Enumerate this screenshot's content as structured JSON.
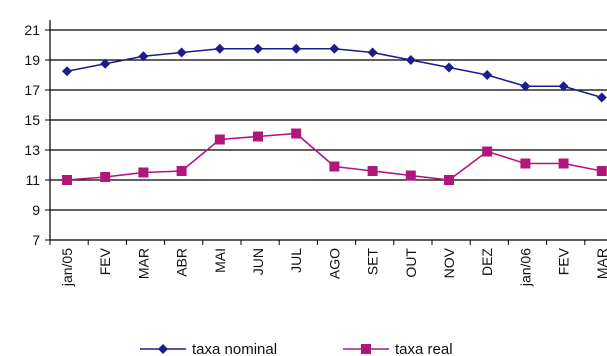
{
  "chart_data": {
    "type": "line",
    "title": "",
    "xlabel": "",
    "ylabel": "",
    "categories": [
      "jan/05",
      "FEV",
      "MAR",
      "ABR",
      "MAI",
      "JUN",
      "JUL",
      "AGO",
      "SET",
      "OUT",
      "NOV",
      "DEZ",
      "jan/06",
      "FEV",
      "MAR"
    ],
    "ylim": [
      7,
      21
    ],
    "yticks": [
      7,
      9,
      11,
      13,
      15,
      17,
      19,
      21
    ],
    "grid": "horizontal",
    "legend_position": "bottom",
    "series": [
      {
        "name": "taxa nominal",
        "color": "#1c1c8c",
        "marker": "diamond",
        "values": [
          18.25,
          18.75,
          19.25,
          19.5,
          19.75,
          19.75,
          19.75,
          19.75,
          19.5,
          19.0,
          18.5,
          18.0,
          17.25,
          17.25,
          16.5
        ]
      },
      {
        "name": "taxa real",
        "color": "#b0177a",
        "marker": "square",
        "values": [
          11.0,
          11.2,
          11.5,
          11.6,
          13.7,
          13.9,
          14.1,
          11.9,
          11.6,
          11.3,
          11.0,
          12.9,
          12.1,
          12.1,
          11.6
        ]
      }
    ]
  }
}
